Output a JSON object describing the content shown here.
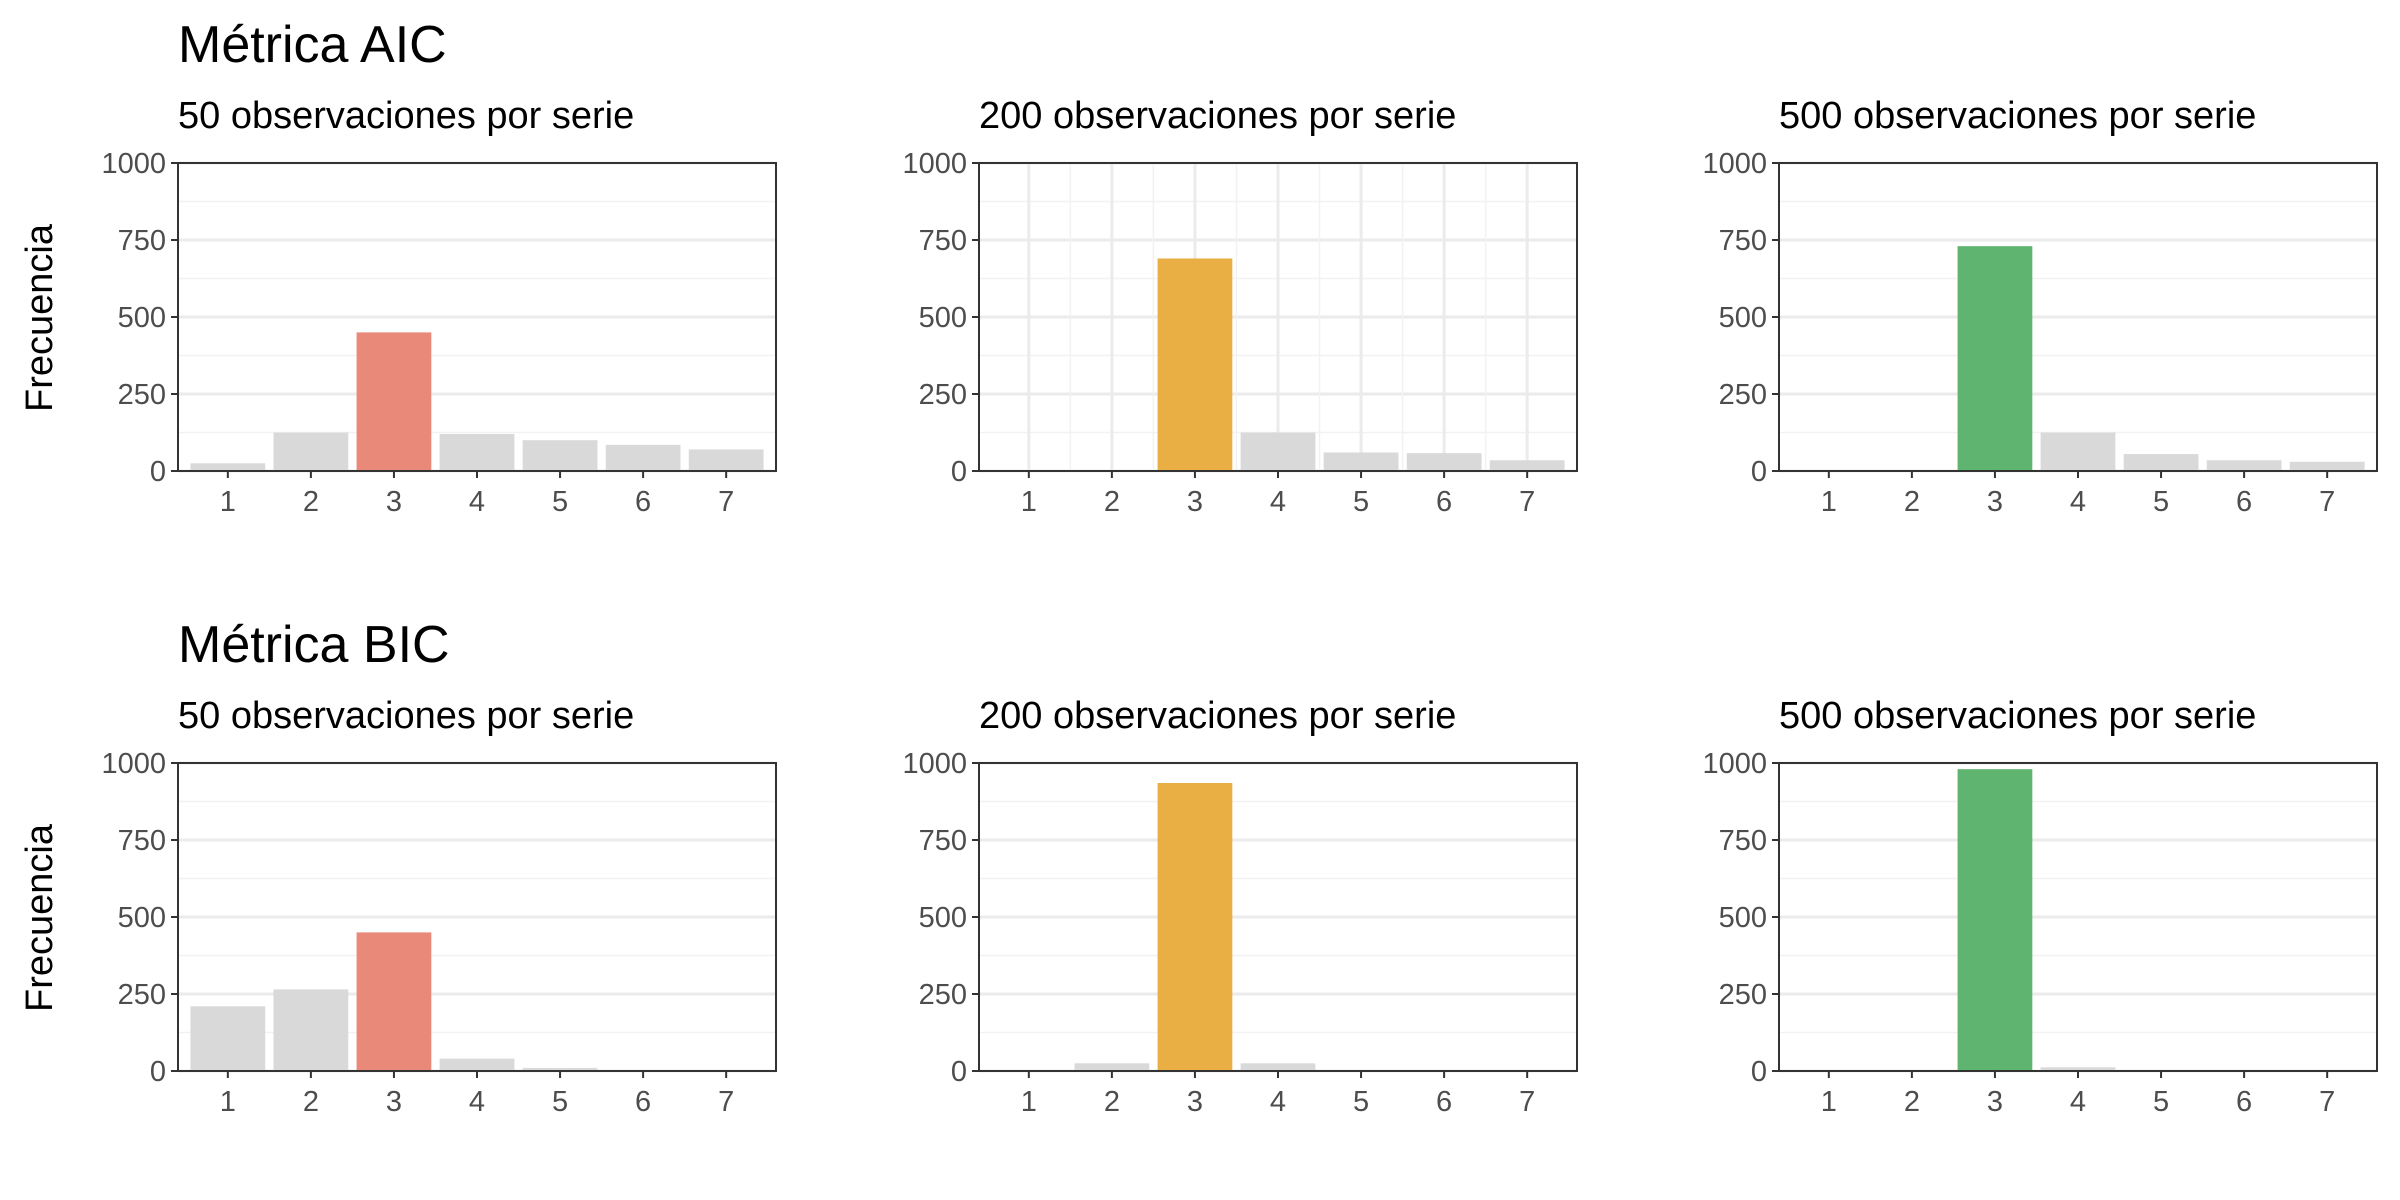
{
  "figure": {
    "rows": [
      {
        "title": "Métrica AIC",
        "ylabel": "Frecuencia",
        "panels": [
          {
            "subtitle": "50 observaciones por serie"
          },
          {
            "subtitle": "200 observaciones por serie"
          },
          {
            "subtitle": "500 observaciones por serie"
          }
        ]
      },
      {
        "title": "Métrica BIC",
        "ylabel": "Frecuencia",
        "panels": [
          {
            "subtitle": "50 observaciones por serie"
          },
          {
            "subtitle": "200 observaciones por serie"
          },
          {
            "subtitle": "500 observaciones por serie"
          }
        ]
      }
    ]
  },
  "colors": {
    "highlight_50": "#E8897A",
    "highlight_200": "#E9AE44",
    "highlight_500": "#5FB56F",
    "other_bars": "#D9D9D9"
  },
  "chart_data": [
    {
      "type": "bar",
      "title": "Métrica AIC",
      "subtitle": "50 observaciones por serie",
      "ylabel": "Frecuencia",
      "xlabel": "",
      "categories": [
        "1",
        "2",
        "3",
        "4",
        "5",
        "6",
        "7"
      ],
      "values": [
        25,
        125,
        450,
        120,
        100,
        85,
        70
      ],
      "highlight": "3",
      "ylim": [
        0,
        1000
      ],
      "yticks": [
        0,
        250,
        500,
        750,
        1000
      ],
      "grid": true
    },
    {
      "type": "bar",
      "title": "Métrica AIC",
      "subtitle": "200 observaciones por serie",
      "ylabel": "Frecuencia",
      "xlabel": "",
      "categories": [
        "1",
        "2",
        "3",
        "4",
        "5",
        "6",
        "7"
      ],
      "values": [
        0,
        0,
        690,
        125,
        60,
        58,
        35
      ],
      "highlight": "3",
      "ylim": [
        0,
        1000
      ],
      "yticks": [
        0,
        250,
        500,
        750,
        1000
      ],
      "grid": true
    },
    {
      "type": "bar",
      "title": "Métrica AIC",
      "subtitle": "500 observaciones por serie",
      "ylabel": "Frecuencia",
      "xlabel": "",
      "categories": [
        "1",
        "2",
        "3",
        "4",
        "5",
        "6",
        "7"
      ],
      "values": [
        0,
        0,
        730,
        125,
        55,
        35,
        30
      ],
      "highlight": "3",
      "ylim": [
        0,
        1000
      ],
      "yticks": [
        0,
        250,
        500,
        750,
        1000
      ],
      "grid": true
    },
    {
      "type": "bar",
      "title": "Métrica BIC",
      "subtitle": "50 observaciones por serie",
      "ylabel": "Frecuencia",
      "xlabel": "",
      "categories": [
        "1",
        "2",
        "3",
        "4",
        "5",
        "6",
        "7"
      ],
      "values": [
        210,
        265,
        450,
        40,
        10,
        3,
        2
      ],
      "highlight": "3",
      "ylim": [
        0,
        1000
      ],
      "yticks": [
        0,
        250,
        500,
        750,
        1000
      ],
      "grid": true
    },
    {
      "type": "bar",
      "title": "Métrica BIC",
      "subtitle": "200 observaciones por serie",
      "ylabel": "Frecuencia",
      "xlabel": "",
      "categories": [
        "1",
        "2",
        "3",
        "4",
        "5",
        "6",
        "7"
      ],
      "values": [
        0,
        25,
        935,
        25,
        2,
        1,
        0
      ],
      "highlight": "3",
      "ylim": [
        0,
        1000
      ],
      "yticks": [
        0,
        250,
        500,
        750,
        1000
      ],
      "grid": true
    },
    {
      "type": "bar",
      "title": "Métrica BIC",
      "subtitle": "500 observaciones por serie",
      "ylabel": "Frecuencia",
      "xlabel": "",
      "categories": [
        "1",
        "2",
        "3",
        "4",
        "5",
        "6",
        "7"
      ],
      "values": [
        0,
        0,
        980,
        12,
        2,
        1,
        0
      ],
      "highlight": "3",
      "ylim": [
        0,
        1000
      ],
      "yticks": [
        0,
        250,
        500,
        750,
        1000
      ],
      "grid": true
    }
  ]
}
